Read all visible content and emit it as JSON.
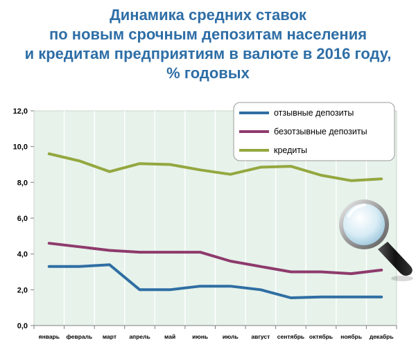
{
  "chart_data": {
    "type": "line",
    "title_lines": [
      "Динамика средних ставок",
      "по новым срочным депозитам  населения",
      "и кредитам предприятиям в валюте в 2016 году,",
      "% годовых"
    ],
    "categories": [
      "январь",
      "февраль",
      "март",
      "апрель",
      "май",
      "июнь",
      "июль",
      "август",
      "сентябрь",
      "октябрь",
      "ноябрь",
      "декабрь"
    ],
    "y_ticks": [
      "0,0",
      "2,0",
      "4,0",
      "6,0",
      "8,0",
      "10,0",
      "12,0"
    ],
    "ylim": [
      0,
      12
    ],
    "grid": "vertical",
    "legend_position": "top-right",
    "series": [
      {
        "name": "отзывные депозиты",
        "color": "#2f6ea3",
        "values": [
          3.3,
          3.3,
          3.4,
          2.0,
          2.0,
          2.2,
          2.2,
          2.0,
          1.55,
          1.6,
          1.6,
          1.6
        ]
      },
      {
        "name": "безотзывные депозиты",
        "color": "#8e3a6c",
        "values": [
          4.6,
          4.4,
          4.2,
          4.1,
          4.1,
          4.1,
          3.6,
          3.3,
          3.0,
          3.0,
          2.9,
          3.1
        ]
      },
      {
        "name": "кредиты",
        "color": "#94a73f",
        "values": [
          9.6,
          9.2,
          8.6,
          9.05,
          9.0,
          8.7,
          8.45,
          8.85,
          8.9,
          8.4,
          8.1,
          8.2
        ]
      }
    ],
    "colors": {
      "plot_background": "#e6f2ea",
      "title": "#2e6ea6"
    },
    "decorations": [
      "magnifier-icon"
    ]
  }
}
